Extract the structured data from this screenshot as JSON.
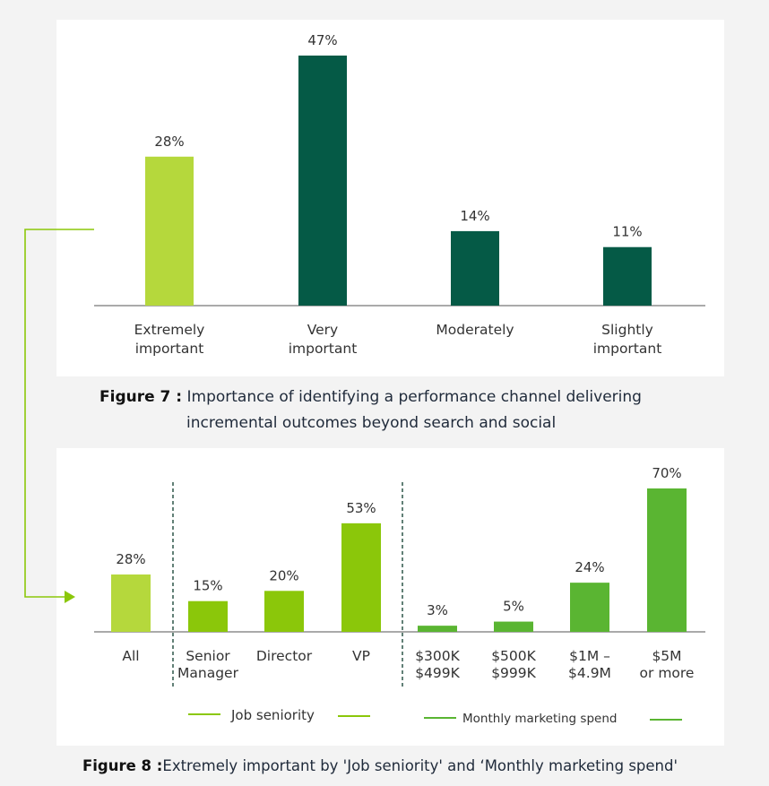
{
  "figure7": {
    "caption_label": "Figure 7 :",
    "caption_line1": "Importance of identifying a performance channel delivering",
    "caption_line2": "incremental outcomes beyond search and social"
  },
  "figure8": {
    "caption_label": "Figure 8 :",
    "caption_text": "Extremely important by 'Job seniority' and ‘Monthly marketing spend'",
    "legend_job": "Job seniority",
    "legend_spend": "Monthly marketing spend"
  },
  "chart_data": [
    {
      "type": "bar",
      "categories": [
        [
          "Extremely",
          "important"
        ],
        [
          "Very",
          "important"
        ],
        [
          "Moderately"
        ],
        [
          "Slightly",
          "important"
        ]
      ],
      "values": [
        28,
        47,
        14,
        11
      ],
      "value_labels": [
        "28%",
        "47%",
        "14%",
        "11%"
      ],
      "colors": [
        "#b5d83c",
        "#055a46",
        "#055a46",
        "#055a46"
      ],
      "unit": "%",
      "ylim": [
        0,
        47
      ],
      "grid": false
    },
    {
      "type": "bar",
      "categories": [
        [
          "All"
        ],
        [
          "Senior",
          "Manager"
        ],
        [
          "Director"
        ],
        [
          "VP"
        ],
        [
          "$300K",
          "$499K"
        ],
        [
          "$500K",
          "$999K"
        ],
        [
          "$1M –",
          "$4.9M"
        ],
        [
          "$5M",
          "or more"
        ]
      ],
      "values": [
        28,
        15,
        20,
        53,
        3,
        5,
        24,
        70
      ],
      "value_labels": [
        "28%",
        "15%",
        "20%",
        "53%",
        "3%",
        "5%",
        "24%",
        "70%"
      ],
      "colors": [
        "#b5d83c",
        "#8bc70a",
        "#8bc70a",
        "#8bc70a",
        "#5ab532",
        "#5ab532",
        "#5ab532",
        "#5ab532"
      ],
      "groups": [
        "Job seniority",
        "Monthly marketing spend"
      ],
      "unit": "%",
      "ylim": [
        0,
        70
      ],
      "grid": false
    }
  ]
}
